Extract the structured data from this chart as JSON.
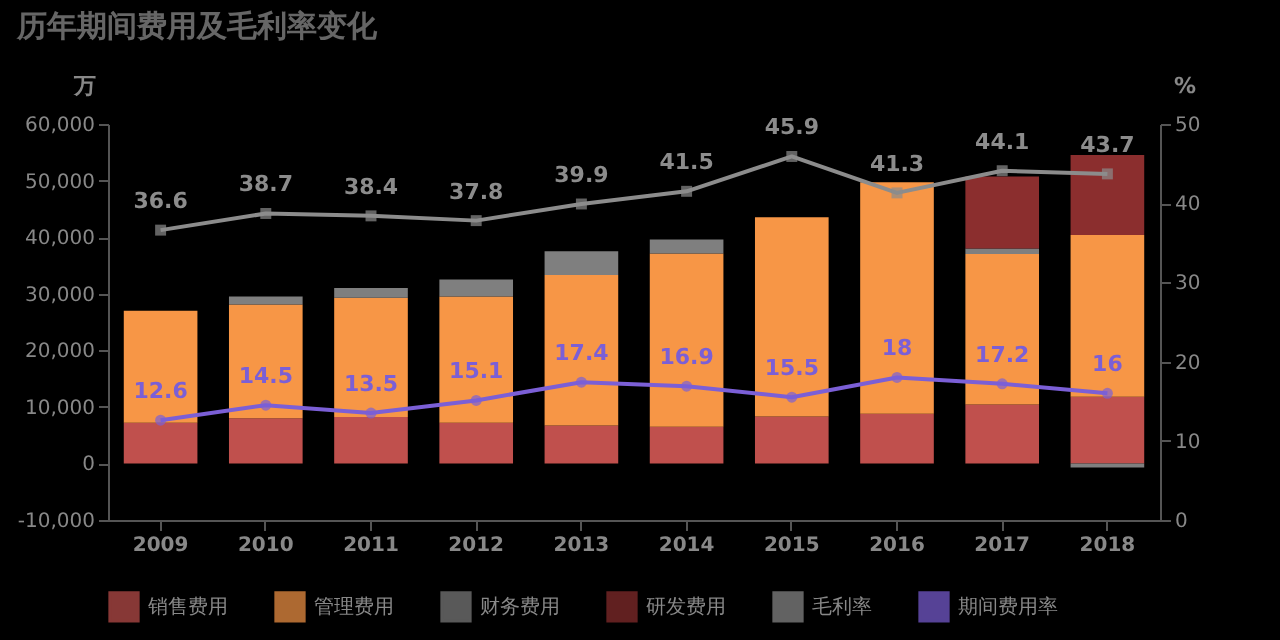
{
  "chart_data": {
    "type": "bar",
    "title": "历年期间费用及毛利率变化",
    "ylabel": "万",
    "y2label": "%",
    "categories": [
      "2009",
      "2010",
      "2011",
      "2012",
      "2013",
      "2014",
      "2015",
      "2016",
      "2017",
      "2018"
    ],
    "stacked": true,
    "series": [
      {
        "name": "销售费用",
        "color": "#c0504d",
        "values": [
          7200,
          8000,
          8200,
          7200,
          6700,
          6500,
          8300,
          8800,
          10400,
          11800
        ]
      },
      {
        "name": "管理费用",
        "color": "#f79646",
        "values": [
          19800,
          20100,
          21100,
          22300,
          26600,
          30600,
          35200,
          40900,
          26600,
          28600
        ]
      },
      {
        "name": "财务费用",
        "color": "#7f7f7f",
        "values": [
          null,
          1400,
          1700,
          3000,
          4200,
          2500,
          null,
          null,
          1000,
          -700
        ]
      },
      {
        "name": "研发费用",
        "color": "#8b2e2e",
        "values": [
          null,
          null,
          null,
          null,
          null,
          null,
          null,
          null,
          12700,
          14100
        ]
      },
      {
        "name": "毛利率",
        "type": "line",
        "axis": "y2",
        "marker": "square",
        "color": "#8c8c8c",
        "values": [
          36.6,
          38.7,
          38.4,
          37.8,
          39.9,
          41.5,
          45.9,
          41.3,
          44.1,
          43.7
        ],
        "value_labels": [
          "36.6",
          "38.7",
          "38.4",
          "37.8",
          "39.9",
          "41.5",
          "45.9",
          "41.3",
          "44.1",
          "43.7"
        ]
      },
      {
        "name": "期间费用率",
        "type": "line",
        "axis": "y2",
        "marker": "circle",
        "color": "#7b5fd6",
        "values": [
          12.6,
          14.5,
          13.5,
          15.1,
          17.4,
          16.9,
          15.5,
          18,
          17.2,
          16
        ],
        "value_labels": [
          "12.6",
          "14.5",
          "13.5",
          "15.1",
          "17.4",
          "16.9",
          "15.5",
          "18",
          "17.2",
          "16"
        ]
      }
    ],
    "ylim": [
      -10000,
      60000
    ],
    "yticks": [
      {
        "value": -10000,
        "label": "-10,000"
      },
      0,
      {
        "value": 10000,
        "label": "10,000"
      },
      {
        "value": 20000,
        "label": "20,000"
      },
      {
        "value": 30000,
        "label": "30,000"
      },
      {
        "value": 40000,
        "label": "40,000"
      },
      {
        "value": 50000,
        "label": "50,000"
      },
      {
        "value": 60000,
        "label": "60,000"
      }
    ],
    "y2lim": [
      0,
      50
    ],
    "y2ticks": [
      0,
      10,
      20,
      30,
      40,
      50
    ],
    "grid": false,
    "legend": "bottom"
  }
}
